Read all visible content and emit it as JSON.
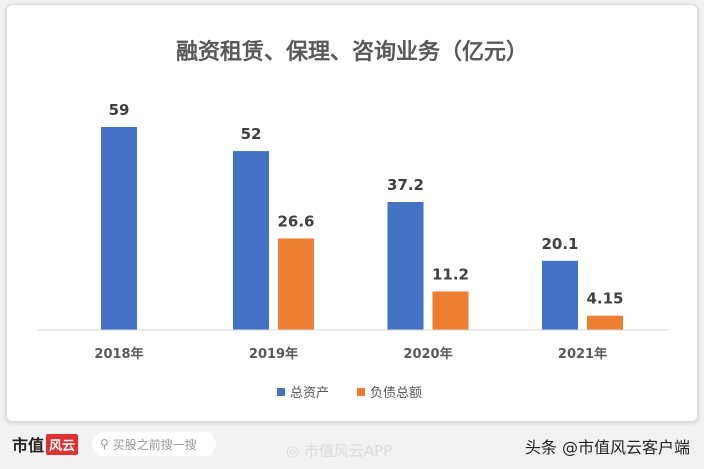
{
  "chart_data": {
    "type": "bar",
    "title": "融资租赁、保理、咨询业务（亿元）",
    "categories": [
      "2018年",
      "2019年",
      "2020年",
      "2021年"
    ],
    "series": [
      {
        "name": "总资产",
        "color": "#4472c4",
        "values": [
          59,
          52,
          37.2,
          20.1
        ],
        "labels": [
          "59",
          "52",
          "37.2",
          "20.1"
        ]
      },
      {
        "name": "负债总额",
        "color": "#ed7d31",
        "values": [
          null,
          26.6,
          11.2,
          4.15
        ],
        "labels": [
          "",
          "26.6",
          "11.2",
          "4.15"
        ]
      }
    ],
    "ylim": [
      0,
      65
    ],
    "grid": false,
    "legend": "bottom"
  },
  "footer": {
    "logo_text": "市值",
    "logo_badge": "风云",
    "search_placeholder": "买股之前搜一搜",
    "weibo_text": "市值风云APP",
    "toutiao_text": "头条 @市值风云客户端"
  }
}
